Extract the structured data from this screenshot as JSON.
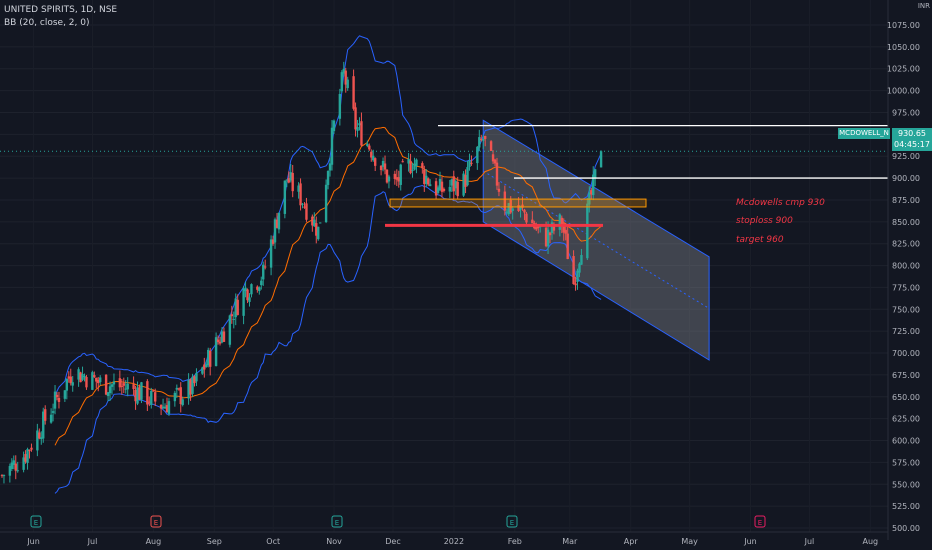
{
  "header": {
    "title": "UNITED SPIRITS, 1D, NSE",
    "indicator": "BB (20, close, 2, 0)"
  },
  "currency": {
    "line1": "INR"
  },
  "price_tag": {
    "symbol": "MCDOWELL_N",
    "price": "930.65",
    "countdown": "04:45:17"
  },
  "annotations": {
    "line1": "Mcdowells cmp 930",
    "line2": "stoploss 900",
    "line3": "target 960"
  },
  "colors": {
    "background": "#131722",
    "up": "#26a69a",
    "down": "#ef5350",
    "band": "#2962ff",
    "basis": "#ff6d00",
    "annotation": "#f23645",
    "channel_fill": "#9598a1",
    "zone": "#ff9800"
  },
  "chart_data": {
    "type": "candlestick",
    "title": "UNITED SPIRITS, 1D, NSE",
    "indicator": "BB (20, close, 2, 0)",
    "ylim": [
      500,
      1075
    ],
    "y_ticks": [
      500,
      525,
      550,
      575,
      600,
      625,
      650,
      675,
      700,
      725,
      750,
      775,
      800,
      825,
      850,
      875,
      900,
      925,
      950,
      975,
      1000,
      1025,
      1050,
      1075
    ],
    "x_ticks": [
      "Jun",
      "Jul",
      "Aug",
      "Sep",
      "Oct",
      "Nov",
      "Dec",
      "2022",
      "Feb",
      "Mar",
      "Apr",
      "May",
      "Jun",
      "Jul",
      "Aug"
    ],
    "grid": true,
    "close_path": [
      {
        "t": "2021-05-20",
        "c": 560
      },
      {
        "t": "2021-06-01",
        "c": 585
      },
      {
        "t": "2021-06-15",
        "c": 640
      },
      {
        "t": "2021-06-25",
        "c": 680
      },
      {
        "t": "2021-07-10",
        "c": 665
      },
      {
        "t": "2021-07-25",
        "c": 660
      },
      {
        "t": "2021-08-10",
        "c": 640
      },
      {
        "t": "2021-08-25",
        "c": 660
      },
      {
        "t": "2021-09-05",
        "c": 705
      },
      {
        "t": "2021-09-20",
        "c": 770
      },
      {
        "t": "2021-09-30",
        "c": 790
      },
      {
        "t": "2021-10-12",
        "c": 900
      },
      {
        "t": "2021-10-20",
        "c": 875
      },
      {
        "t": "2021-10-28",
        "c": 840
      },
      {
        "t": "2021-11-05",
        "c": 960
      },
      {
        "t": "2021-11-10",
        "c": 1020
      },
      {
        "t": "2021-11-16",
        "c": 960
      },
      {
        "t": "2021-11-25",
        "c": 930
      },
      {
        "t": "2021-12-05",
        "c": 890
      },
      {
        "t": "2021-12-15",
        "c": 920
      },
      {
        "t": "2021-12-28",
        "c": 885
      },
      {
        "t": "2022-01-10",
        "c": 895
      },
      {
        "t": "2022-01-20",
        "c": 945
      },
      {
        "t": "2022-01-31",
        "c": 870
      },
      {
        "t": "2022-02-10",
        "c": 860
      },
      {
        "t": "2022-02-20",
        "c": 830
      },
      {
        "t": "2022-03-01",
        "c": 850
      },
      {
        "t": "2022-03-07",
        "c": 780
      },
      {
        "t": "2022-03-14",
        "c": 860
      },
      {
        "t": "2022-03-21",
        "c": 930.65
      }
    ],
    "horizontal_levels": [
      {
        "label": "upper target line",
        "value": 960
      },
      {
        "label": "stoploss line",
        "value": 900
      },
      {
        "label": "support line",
        "value": 846
      }
    ],
    "zone": {
      "from": 867,
      "to": 876
    },
    "channel": {
      "upper": [
        {
          "t": "2022-01-20",
          "v": 966
        },
        {
          "t": "2022-05-15",
          "v": 810
        }
      ],
      "lower": [
        {
          "t": "2022-01-20",
          "v": 850
        },
        {
          "t": "2022-05-15",
          "v": 692
        }
      ]
    },
    "last_price": 930.65
  }
}
